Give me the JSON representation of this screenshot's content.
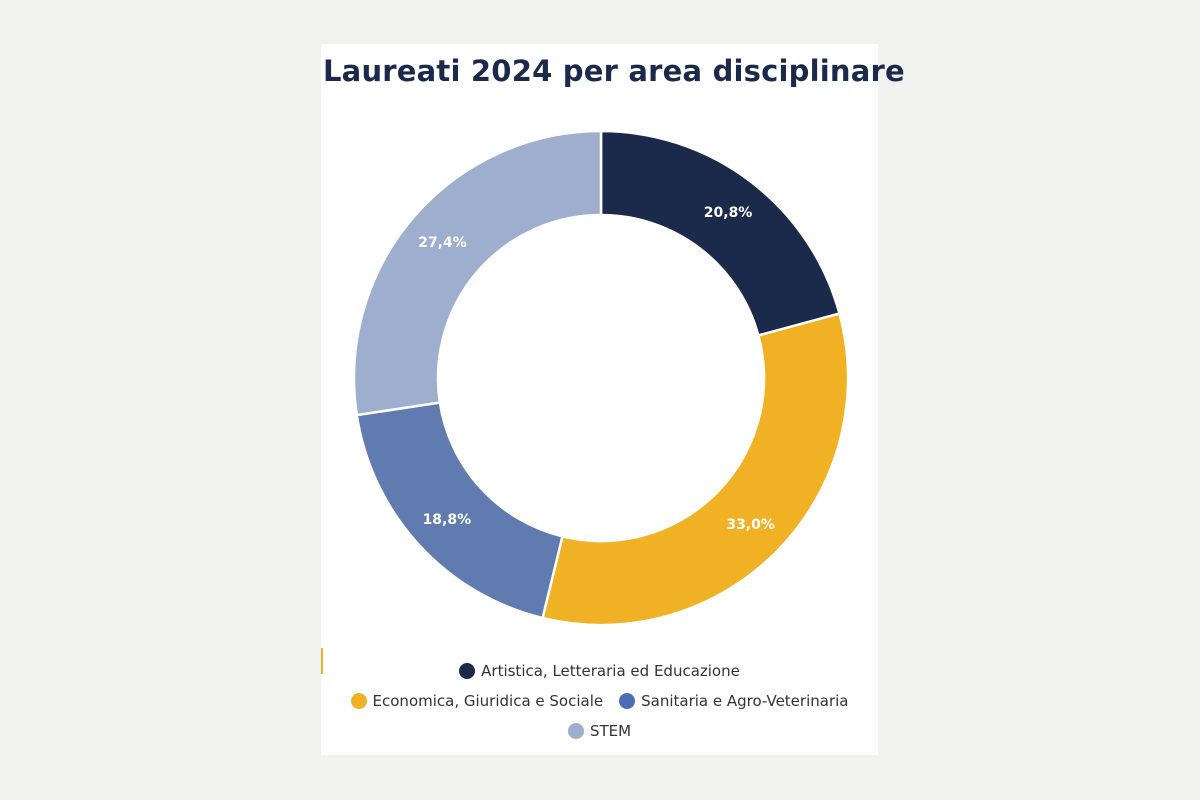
{
  "chart_data": {
    "type": "pie",
    "title": "Laureati 2024 per area disciplinare",
    "categories": [
      "Artistica, Letteraria ed Educazione",
      "Economica, Giuridica e Sociale",
      "Sanitaria e Agro-Veterinaria",
      "STEM"
    ],
    "values": [
      20.8,
      33.0,
      18.8,
      27.4
    ],
    "value_labels": [
      "20,8%",
      "33,0%",
      "18,8%",
      "27,4%"
    ],
    "colors": [
      "#1b2a4a",
      "#f0b224",
      "#607bb0",
      "#9eaecf"
    ],
    "legend_colors": [
      "#1b2a4a",
      "#f0b224",
      "#4a6eb5",
      "#9eaecf"
    ],
    "donut": true,
    "legend_position": "bottom"
  }
}
